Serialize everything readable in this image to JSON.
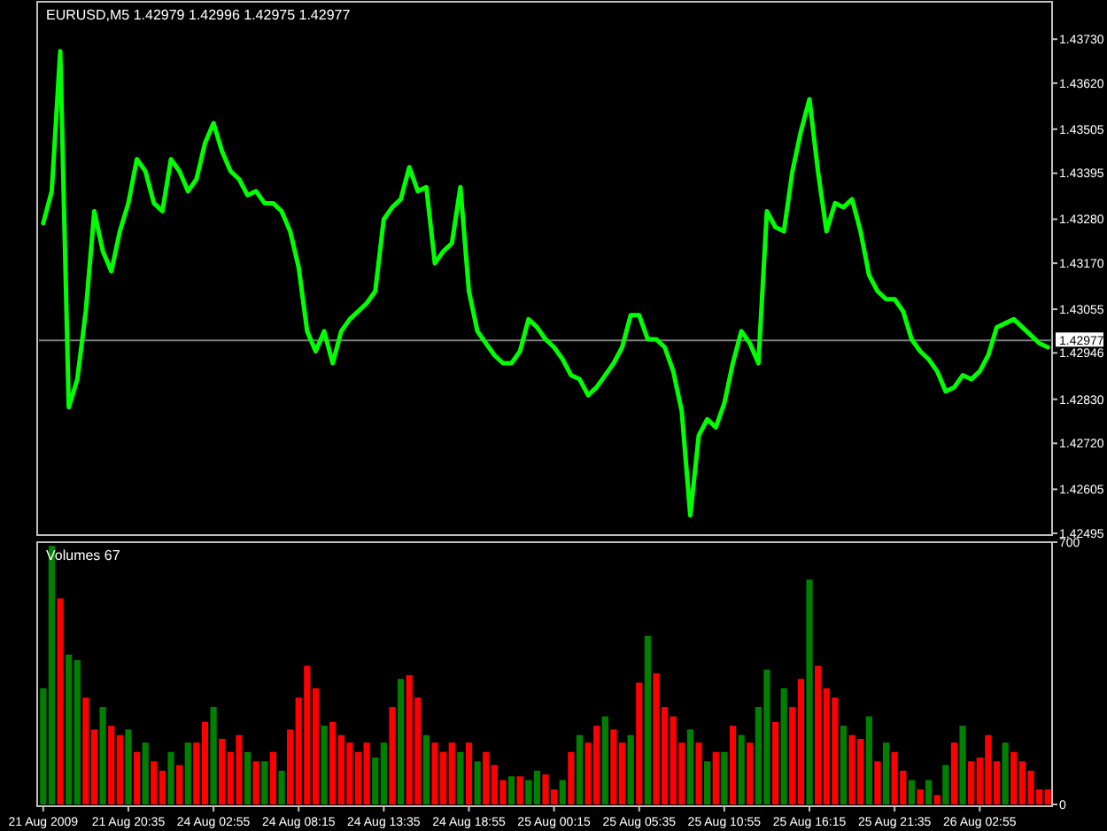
{
  "chart_data": [
    {
      "type": "line",
      "title": "EURUSD,M5  1.42979 1.42996 1.42975 1.42977",
      "tick_labels": "y",
      "ylim": [
        1.42495,
        1.43819
      ],
      "yticks": [
        {
          "value": 1.42495,
          "label": "1.42495"
        },
        {
          "value": 1.42605,
          "label": "1.42605"
        },
        {
          "value": 1.4272,
          "label": "1.42720"
        },
        {
          "value": 1.4283,
          "label": "1.42830"
        },
        {
          "value": 1.42946,
          "label": "1.42946"
        },
        {
          "value": 1.43055,
          "label": "1.43055"
        },
        {
          "value": 1.4317,
          "label": "1.43170"
        },
        {
          "value": 1.4328,
          "label": "1.43280"
        },
        {
          "value": 1.43395,
          "label": "1.43395"
        },
        {
          "value": 1.43505,
          "label": "1.43505"
        },
        {
          "value": 1.4362,
          "label": "1.43620"
        },
        {
          "value": 1.4373,
          "label": "1.43730"
        }
      ],
      "ref_lines": [
        {
          "axis": "y",
          "value": 1.42977,
          "label": "1.42977",
          "color": "#808080"
        }
      ],
      "categories": [
        null,
        null,
        null,
        null,
        null,
        null,
        null,
        null,
        null,
        null,
        null,
        null,
        null,
        null,
        null,
        null,
        null,
        null,
        null,
        null,
        null,
        null,
        null,
        null,
        null,
        null,
        null,
        null,
        null,
        null,
        null,
        null,
        null,
        null,
        null,
        null,
        null,
        null,
        null,
        null,
        null,
        null,
        null,
        null,
        null,
        null,
        null,
        null,
        null,
        null,
        null,
        null,
        null,
        null,
        null,
        null,
        null,
        null,
        null,
        null,
        null,
        null,
        null,
        null,
        null,
        null,
        null,
        null,
        null,
        null,
        null,
        null,
        null,
        null,
        null,
        null,
        null,
        null,
        null,
        null,
        null,
        null,
        null,
        null,
        null,
        null,
        null,
        null,
        null,
        null,
        null,
        null,
        null,
        null,
        null,
        null,
        null,
        null,
        null,
        null,
        null,
        null,
        null,
        null,
        null,
        null,
        null,
        null,
        null,
        null,
        null,
        null,
        null,
        null,
        null,
        null,
        null,
        null,
        null
      ],
      "series": [
        {
          "color": "#00ff00",
          "values": [
            1.4327,
            1.4335,
            1.437,
            1.4281,
            1.4288,
            1.4305,
            1.433,
            1.432,
            1.4315,
            1.4325,
            1.4332,
            1.4343,
            1.434,
            1.4332,
            1.433,
            1.4343,
            1.434,
            1.4335,
            1.4338,
            1.4347,
            1.4352,
            1.4345,
            1.434,
            1.4338,
            1.4334,
            1.4335,
            1.4332,
            1.4332,
            1.433,
            1.4325,
            1.4316,
            1.43,
            1.4295,
            1.43,
            1.4292,
            1.43,
            1.4303,
            1.4305,
            1.4307,
            1.431,
            1.4328,
            1.4331,
            1.4333,
            1.4341,
            1.4335,
            1.4336,
            1.4317,
            1.432,
            1.4322,
            1.4336,
            1.431,
            1.43,
            1.4297,
            1.4294,
            1.4292,
            1.4292,
            1.4295,
            1.4303,
            1.4301,
            1.4298,
            1.4296,
            1.4293,
            1.4289,
            1.4288,
            1.4284,
            1.4286,
            1.4289,
            1.4292,
            1.4296,
            1.4304,
            1.4304,
            1.4298,
            1.4298,
            1.4296,
            1.429,
            1.428,
            1.4254,
            1.4274,
            1.4278,
            1.4276,
            1.4282,
            1.4292,
            1.43,
            1.4297,
            1.4292,
            1.433,
            1.4326,
            1.4325,
            1.434,
            1.435,
            1.4358,
            1.434,
            1.4325,
            1.4332,
            1.4331,
            1.4333,
            1.4325,
            1.4314,
            1.431,
            1.4308,
            1.4308,
            1.4305,
            1.4298,
            1.4295,
            1.4293,
            1.429,
            1.4285,
            1.4286,
            1.4289,
            1.4288,
            1.429,
            1.4294,
            1.4301,
            1.4302,
            1.4303,
            1.4301,
            1.4299,
            1.4297,
            1.4296
          ]
        }
      ]
    },
    {
      "type": "bar",
      "title": "Volumes 67",
      "ylim": [
        0,
        700
      ],
      "yticks": [
        0,
        700
      ],
      "categories": [
        "21 Aug 2009",
        null,
        null,
        null,
        null,
        null,
        null,
        null,
        null,
        null,
        "21 Aug 20:35",
        null,
        null,
        null,
        null,
        null,
        null,
        null,
        null,
        null,
        "24 Aug 02:55",
        null,
        null,
        null,
        null,
        null,
        null,
        null,
        null,
        null,
        "24 Aug 08:15",
        null,
        null,
        null,
        null,
        null,
        null,
        null,
        null,
        null,
        "24 Aug 13:35",
        null,
        null,
        null,
        null,
        null,
        null,
        null,
        null,
        null,
        "24 Aug 18:55",
        null,
        null,
        null,
        null,
        null,
        null,
        null,
        null,
        null,
        "25 Aug 00:15",
        null,
        null,
        null,
        null,
        null,
        null,
        null,
        null,
        null,
        "25 Aug 05:35",
        null,
        null,
        null,
        null,
        null,
        null,
        null,
        null,
        null,
        "25 Aug 10:55",
        null,
        null,
        null,
        null,
        null,
        null,
        null,
        null,
        null,
        "25 Aug 16:15",
        null,
        null,
        null,
        null,
        null,
        null,
        null,
        null,
        null,
        "25 Aug 21:35",
        null,
        null,
        null,
        null,
        null,
        null,
        null,
        null,
        null,
        "26 Aug 02:55",
        null,
        null,
        null,
        null,
        null,
        null,
        null,
        null
      ],
      "values": [
        310,
        690,
        550,
        400,
        385,
        285,
        200,
        260,
        210,
        185,
        200,
        140,
        165,
        115,
        90,
        140,
        105,
        165,
        165,
        220,
        260,
        175,
        140,
        185,
        140,
        115,
        115,
        140,
        90,
        200,
        285,
        370,
        310,
        210,
        220,
        185,
        165,
        140,
        165,
        125,
        165,
        260,
        335,
        345,
        285,
        185,
        165,
        140,
        165,
        140,
        165,
        115,
        140,
        105,
        65,
        75,
        75,
        65,
        90,
        80,
        40,
        65,
        140,
        185,
        165,
        210,
        235,
        200,
        165,
        185,
        325,
        450,
        350,
        260,
        235,
        165,
        200,
        165,
        115,
        140,
        140,
        210,
        185,
        165,
        260,
        360,
        220,
        310,
        260,
        335,
        600,
        370,
        310,
        285,
        210,
        185,
        175,
        235,
        115,
        165,
        140,
        90,
        65,
        40,
        65,
        25,
        105,
        165,
        210,
        115,
        125,
        185,
        115,
        165,
        140,
        115,
        90,
        40,
        40
      ],
      "colors": [
        "#008000",
        "#008000",
        "#ff0000",
        "#008000",
        "#008000",
        "#ff0000",
        "#ff0000",
        "#008000",
        "#ff0000",
        "#ff0000",
        "#008000",
        "#ff0000",
        "#008000",
        "#ff0000",
        "#ff0000",
        "#008000",
        "#ff0000",
        "#008000",
        "#ff0000",
        "#ff0000",
        "#008000",
        "#ff0000",
        "#ff0000",
        "#ff0000",
        "#008000",
        "#ff0000",
        "#008000",
        "#ff0000",
        "#008000",
        "#ff0000",
        "#ff0000",
        "#ff0000",
        "#ff0000",
        "#008000",
        "#ff0000",
        "#ff0000",
        "#ff0000",
        "#ff0000",
        "#ff0000",
        "#008000",
        "#008000",
        "#ff0000",
        "#008000",
        "#ff0000",
        "#ff0000",
        "#008000",
        "#ff0000",
        "#ff0000",
        "#ff0000",
        "#008000",
        "#ff0000",
        "#008000",
        "#ff0000",
        "#ff0000",
        "#ff0000",
        "#008000",
        "#ff0000",
        "#008000",
        "#008000",
        "#ff0000",
        "#ff0000",
        "#008000",
        "#ff0000",
        "#008000",
        "#ff0000",
        "#ff0000",
        "#008000",
        "#ff0000",
        "#ff0000",
        "#008000",
        "#ff0000",
        "#008000",
        "#ff0000",
        "#ff0000",
        "#ff0000",
        "#ff0000",
        "#008000",
        "#ff0000",
        "#008000",
        "#ff0000",
        "#008000",
        "#ff0000",
        "#008000",
        "#ff0000",
        "#008000",
        "#008000",
        "#ff0000",
        "#008000",
        "#ff0000",
        "#ff0000",
        "#008000",
        "#ff0000",
        "#ff0000",
        "#ff0000",
        "#008000",
        "#ff0000",
        "#ff0000",
        "#008000",
        "#ff0000",
        "#008000",
        "#ff0000",
        "#ff0000",
        "#008000",
        "#ff0000",
        "#008000",
        "#ff0000",
        "#008000",
        "#ff0000",
        "#008000",
        "#ff0000",
        "#ff0000",
        "#ff0000",
        "#ff0000",
        "#008000",
        "#ff0000",
        "#ff0000",
        "#ff0000",
        "#ff0000",
        "#ff0000"
      ]
    }
  ]
}
